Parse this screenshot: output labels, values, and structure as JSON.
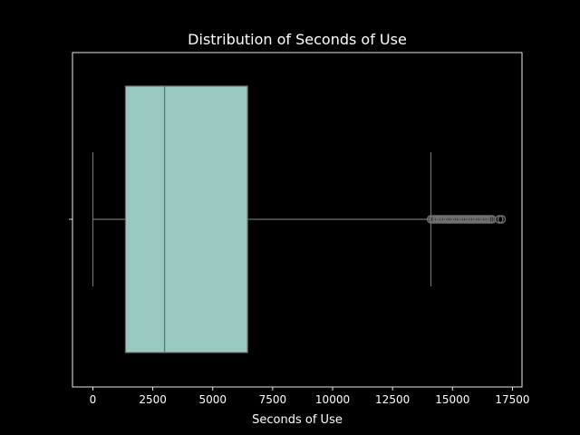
{
  "chart_data": {
    "type": "boxplot",
    "title": "Distribution of Seconds of Use",
    "xlabel": "Seconds of Use",
    "ylabel": "",
    "xlim": [
      -850,
      17900
    ],
    "xticks": [
      0,
      2500,
      5000,
      7500,
      10000,
      12500,
      15000,
      17500
    ],
    "xtick_labels": [
      "0",
      "2500",
      "5000",
      "7500",
      "10000",
      "12500",
      "15000",
      "17500"
    ],
    "grid": false,
    "orientation": "horizontal",
    "box": {
      "whisker_low": 0,
      "q1": 1360,
      "median": 2990,
      "q3": 6450,
      "whisker_high": 14100
    },
    "outliers": [
      14100,
      14180,
      14250,
      14330,
      14400,
      14480,
      14550,
      14620,
      14700,
      14780,
      14850,
      14920,
      15000,
      15080,
      15150,
      15220,
      15300,
      15380,
      15450,
      15520,
      15600,
      15680,
      15750,
      15820,
      15900,
      15980,
      16050,
      16120,
      16200,
      16280,
      16350,
      16420,
      16500,
      16580,
      16650,
      16950,
      17050
    ],
    "colors": {
      "background": "#000000",
      "box_fill": "#98c9c1",
      "lines": "#707070",
      "axes": "#ffffff",
      "text": "#ffffff"
    }
  }
}
